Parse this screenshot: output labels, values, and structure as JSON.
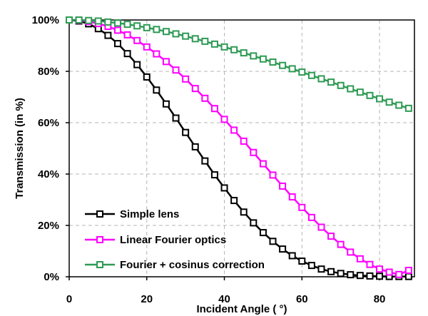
{
  "chart_data": {
    "type": "line",
    "xlabel": "Incident Angle ( °)",
    "ylabel": "Transmission (in %)",
    "xlim": [
      0,
      89
    ],
    "ylim": [
      0,
      100
    ],
    "x_ticks": [
      0,
      20,
      40,
      60,
      80
    ],
    "x_tick_labels": [
      "0",
      "20",
      "40",
      "60",
      "80"
    ],
    "y_ticks": [
      0,
      20,
      40,
      60,
      80,
      100
    ],
    "y_tick_labels": [
      "0%",
      "20%",
      "40%",
      "60%",
      "80%",
      "100%"
    ],
    "grid": true,
    "legend_position": "bottom-left",
    "x": [
      0,
      2.5,
      5,
      7.5,
      10,
      12.5,
      15,
      17.5,
      20,
      22.5,
      25,
      27.5,
      30,
      32.5,
      35,
      37.5,
      40,
      42.5,
      45,
      47.5,
      50,
      52.5,
      55,
      57.5,
      60,
      62.5,
      65,
      67.5,
      70,
      72.5,
      75,
      77.5,
      80,
      82.5,
      85,
      87.5
    ],
    "series": [
      {
        "name": "Simple lens",
        "color": "#000000",
        "values": [
          100,
          99.6,
          98.5,
          96.6,
          94,
          90.8,
          86.9,
          82.6,
          77.8,
          72.7,
          67.3,
          61.8,
          56.2,
          50.6,
          45.1,
          39.7,
          34.6,
          29.7,
          25.2,
          21,
          17.2,
          13.8,
          10.8,
          8.2,
          6.1,
          4.4,
          3,
          2,
          1.3,
          0.8,
          0.5,
          0.3,
          0.2,
          0.1,
          0.1,
          0.1
        ]
      },
      {
        "name": "Linear Fourier optics",
        "color": "#ff00ff",
        "values": [
          100,
          99.9,
          99.4,
          98.6,
          97.5,
          96,
          94.2,
          92,
          89.5,
          86.8,
          83.8,
          80.5,
          77,
          73.3,
          69.5,
          65.5,
          61.3,
          57.1,
          52.8,
          48.4,
          44,
          39.6,
          35.3,
          31.1,
          27,
          23.1,
          19.3,
          15.8,
          12.6,
          9.6,
          7,
          4.8,
          3,
          1.8,
          0.9,
          2.5
        ]
      },
      {
        "name": "Fourier + cosinus correction",
        "color": "#2e9a54",
        "values": [
          100,
          100,
          99.8,
          99.6,
          99.2,
          98.8,
          98.3,
          97.7,
          97,
          96.3,
          95.5,
          94.6,
          93.7,
          92.7,
          91.7,
          90.6,
          89.5,
          88.4,
          87.2,
          86,
          84.8,
          83.6,
          82.3,
          81,
          79.7,
          78.4,
          77.1,
          75.8,
          74.5,
          73.2,
          71.9,
          70.6,
          69.3,
          68,
          66.8,
          65.6
        ]
      }
    ]
  }
}
